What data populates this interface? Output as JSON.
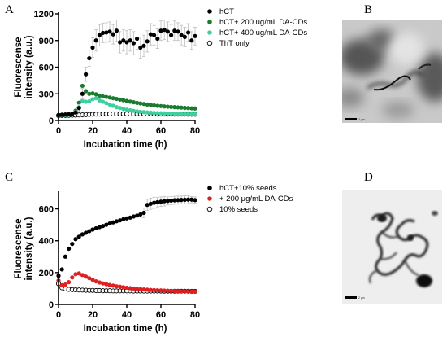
{
  "panels": {
    "a": "A",
    "b": "B",
    "c": "C",
    "d": "D"
  },
  "micrograph_b": {
    "scale_bar_label": "2 μm"
  },
  "micrograph_d": {
    "scale_bar_label": "2 μm"
  },
  "chart_data": [
    {
      "type": "scatter",
      "panel": "A",
      "xlabel": "Incubation time (h)",
      "ylabel": "Fluorescense intensity (a.u.)",
      "xlim": [
        0,
        80
      ],
      "ylim": [
        0,
        1200
      ],
      "xticks": [
        0,
        20,
        40,
        60,
        80
      ],
      "yticks": [
        0,
        300,
        600,
        900,
        1200
      ],
      "grid": false,
      "legend_position": "top-right",
      "series": [
        {
          "name": "hCT",
          "color": "#000000",
          "marker": "filled",
          "error_bars": true,
          "x": [
            0,
            2,
            4,
            6,
            8,
            10,
            12,
            14,
            16,
            18,
            20,
            22,
            24,
            26,
            28,
            30,
            32,
            34,
            36,
            38,
            40,
            42,
            44,
            46,
            48,
            50,
            52,
            54,
            56,
            58,
            60,
            62,
            64,
            66,
            68,
            70,
            72,
            74,
            76,
            78,
            80
          ],
          "y": [
            62,
            65,
            68,
            70,
            75,
            90,
            140,
            300,
            520,
            700,
            820,
            900,
            960,
            985,
            990,
            1000,
            970,
            1010,
            880,
            900,
            880,
            900,
            870,
            920,
            820,
            840,
            890,
            970,
            960,
            920,
            1010,
            1020,
            1000,
            960,
            1010,
            1000,
            960,
            940,
            990,
            900,
            950
          ],
          "err": [
            5,
            5,
            5,
            8,
            10,
            20,
            40,
            60,
            80,
            90,
            110,
            120,
            120,
            110,
            110,
            110,
            110,
            120,
            120,
            120,
            130,
            120,
            130,
            120,
            120,
            120,
            120,
            120,
            110,
            110,
            110,
            110,
            110,
            120,
            110,
            100,
            110,
            110,
            100,
            100,
            100
          ]
        },
        {
          "name": "hCT+ 200 ug/mL DA-CDs",
          "color": "#1a7a2e",
          "marker": "filled",
          "x": [
            0,
            2,
            4,
            6,
            8,
            10,
            12,
            14,
            16,
            18,
            20,
            22,
            24,
            26,
            28,
            30,
            32,
            34,
            36,
            38,
            40,
            42,
            44,
            46,
            48,
            50,
            52,
            54,
            56,
            58,
            60,
            62,
            64,
            66,
            68,
            70,
            72,
            74,
            76,
            78,
            80
          ],
          "y": [
            60,
            62,
            65,
            68,
            75,
            110,
            200,
            390,
            330,
            300,
            305,
            295,
            280,
            270,
            265,
            258,
            250,
            243,
            235,
            228,
            220,
            212,
            205,
            198,
            192,
            186,
            180,
            175,
            170,
            165,
            162,
            158,
            155,
            152,
            150,
            147,
            145,
            142,
            140,
            137,
            135
          ]
        },
        {
          "name": "hCT+ 400 ug/mL DA-CDs",
          "color": "#3fcf9e",
          "marker": "filled",
          "x": [
            0,
            2,
            4,
            6,
            8,
            10,
            12,
            14,
            16,
            18,
            20,
            22,
            24,
            26,
            28,
            30,
            32,
            34,
            36,
            38,
            40,
            42,
            44,
            46,
            48,
            50,
            52,
            54,
            56,
            58,
            60,
            62,
            64,
            66,
            68,
            70,
            72,
            74,
            76,
            78,
            80
          ],
          "y": [
            58,
            60,
            62,
            65,
            70,
            95,
            150,
            220,
            210,
            215,
            240,
            250,
            225,
            210,
            195,
            180,
            165,
            150,
            140,
            130,
            122,
            115,
            108,
            102,
            98,
            94,
            91,
            88,
            85,
            83,
            82,
            80,
            78,
            77,
            76,
            75,
            74,
            73,
            72,
            72,
            71
          ]
        },
        {
          "name": "ThT only",
          "color": "#000000",
          "marker": "open",
          "x": [
            0,
            2,
            4,
            6,
            8,
            10,
            12,
            14,
            16,
            18,
            20,
            22,
            24,
            26,
            28,
            30,
            32,
            34,
            36,
            38,
            40,
            42,
            44,
            46,
            48,
            50,
            52,
            54,
            56,
            58,
            60,
            62,
            64,
            66,
            68,
            70,
            72,
            74,
            76,
            78,
            80
          ],
          "y": [
            55,
            56,
            57,
            58,
            59,
            60,
            62,
            64,
            66,
            68,
            70,
            71,
            72,
            73,
            73,
            74,
            74,
            74,
            74,
            74,
            74,
            74,
            74,
            73,
            73,
            73,
            73,
            73,
            72,
            72,
            72,
            72,
            72,
            71,
            71,
            71,
            71,
            71,
            70,
            70,
            70
          ]
        }
      ]
    },
    {
      "type": "scatter",
      "panel": "C",
      "xlabel": "Incubation time (h)",
      "ylabel": "Fluorescense intensity (a.u.)",
      "xlim": [
        0,
        80
      ],
      "ylim": [
        0,
        700
      ],
      "xticks": [
        0,
        20,
        40,
        60,
        80
      ],
      "yticks": [
        0,
        200,
        400,
        600
      ],
      "grid": false,
      "legend_position": "top-right",
      "series": [
        {
          "name": "hCT+10% seeds",
          "color": "#000000",
          "marker": "filled",
          "error_bars": true,
          "x": [
            0,
            2,
            4,
            6,
            8,
            10,
            12,
            14,
            16,
            18,
            20,
            22,
            24,
            26,
            28,
            30,
            32,
            34,
            36,
            38,
            40,
            42,
            44,
            46,
            48,
            50,
            52,
            54,
            56,
            58,
            60,
            62,
            64,
            66,
            68,
            70,
            72,
            74,
            76,
            78,
            80
          ],
          "y": [
            180,
            220,
            300,
            350,
            380,
            410,
            425,
            440,
            450,
            460,
            470,
            478,
            485,
            492,
            500,
            508,
            515,
            522,
            528,
            535,
            540,
            545,
            552,
            558,
            565,
            575,
            625,
            632,
            638,
            642,
            645,
            648,
            650,
            652,
            654,
            655,
            656,
            657,
            658,
            658,
            655
          ],
          "err": [
            5,
            5,
            5,
            5,
            5,
            5,
            5,
            5,
            5,
            5,
            5,
            5,
            5,
            5,
            5,
            5,
            5,
            5,
            5,
            5,
            5,
            5,
            5,
            5,
            8,
            30,
            35,
            35,
            35,
            30,
            30,
            30,
            25,
            25,
            25,
            25,
            25,
            25,
            25,
            20,
            20
          ]
        },
        {
          "name": "+ 200 μg/mL DA-CDs",
          "color": "#e02020",
          "marker": "filled",
          "x": [
            0,
            2,
            4,
            6,
            8,
            10,
            12,
            14,
            16,
            18,
            20,
            22,
            24,
            26,
            28,
            30,
            32,
            34,
            36,
            38,
            40,
            42,
            44,
            46,
            48,
            50,
            52,
            54,
            56,
            58,
            60,
            62,
            64,
            66,
            68,
            70,
            72,
            74,
            76,
            78,
            80
          ],
          "y": [
            150,
            120,
            125,
            140,
            170,
            190,
            195,
            185,
            175,
            165,
            155,
            145,
            138,
            132,
            127,
            122,
            118,
            114,
            111,
            108,
            105,
            102,
            100,
            98,
            96,
            94,
            93,
            91,
            90,
            89,
            88,
            87,
            86,
            85,
            84,
            83,
            82,
            81,
            80,
            80,
            80
          ]
        },
        {
          "name": "10% seeds",
          "color": "#000000",
          "marker": "open",
          "x": [
            0,
            2,
            4,
            6,
            8,
            10,
            12,
            14,
            16,
            18,
            20,
            22,
            24,
            26,
            28,
            30,
            32,
            34,
            36,
            38,
            40,
            42,
            44,
            46,
            48,
            50,
            52,
            54,
            56,
            58,
            60,
            62,
            64,
            66,
            68,
            70,
            72,
            74,
            76,
            78,
            80
          ],
          "y": [
            130,
            105,
            98,
            95,
            93,
            92,
            91,
            90,
            89,
            88,
            88,
            87,
            87,
            86,
            86,
            86,
            85,
            85,
            85,
            85,
            85,
            85,
            84,
            84,
            84,
            84,
            84,
            84,
            84,
            84,
            84,
            83,
            83,
            83,
            83,
            83,
            83,
            83,
            83,
            82,
            82
          ]
        }
      ]
    }
  ]
}
